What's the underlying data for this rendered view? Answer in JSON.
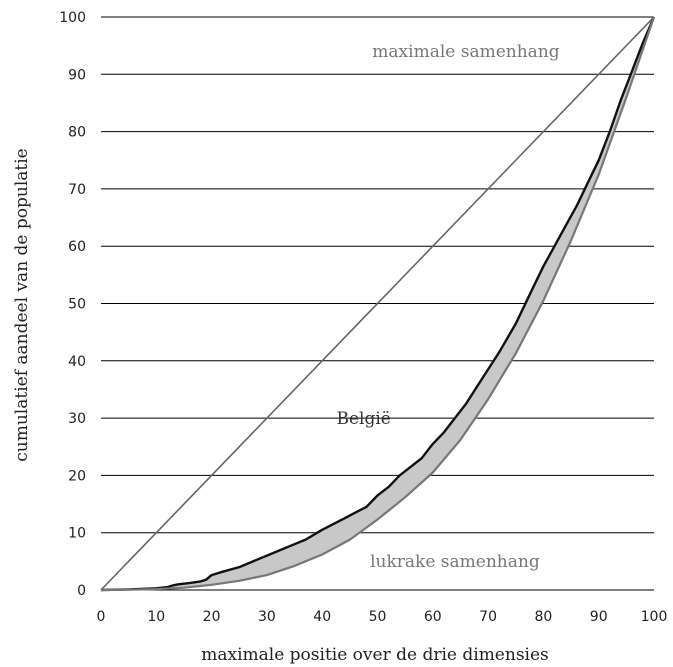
{
  "chart_data": {
    "type": "line",
    "xlabel": "maximale positie over de drie dimensies",
    "ylabel": "cumulatief aandeel van de populatie",
    "xlim": [
      0,
      100
    ],
    "ylim": [
      0,
      100
    ],
    "x_ticks": [
      0,
      10,
      20,
      30,
      40,
      50,
      60,
      70,
      80,
      90,
      100
    ],
    "y_ticks": [
      0,
      10,
      20,
      30,
      40,
      50,
      60,
      70,
      80,
      90,
      100
    ],
    "grid": "horizontal",
    "annotations": [
      {
        "text": "maximale samenhang",
        "x": 66,
        "y": 93,
        "style": "grey"
      },
      {
        "text": "België",
        "x": 47.5,
        "y": 29,
        "style": "dark"
      },
      {
        "text": "lukrake samenhang",
        "x": 64,
        "y": 4,
        "style": "grey"
      }
    ],
    "series": [
      {
        "label": "maximale samenhang",
        "color": "#666666",
        "x": [
          0,
          100
        ],
        "y": [
          0,
          100
        ]
      },
      {
        "label": "België",
        "color": "#111111",
        "x": [
          0,
          5,
          10,
          12,
          13,
          14,
          16,
          18,
          19,
          20,
          22,
          25,
          28,
          30,
          32,
          35,
          37,
          40,
          42,
          44,
          46,
          48,
          50,
          52,
          54,
          56,
          58,
          60,
          62,
          64,
          66,
          68,
          70,
          72,
          75,
          78,
          80,
          82,
          84,
          86,
          88,
          90,
          92,
          94,
          96,
          98,
          100
        ],
        "y": [
          0,
          0.1,
          0.3,
          0.5,
          0.8,
          1.0,
          1.2,
          1.5,
          1.8,
          2.6,
          3.2,
          4.0,
          5.2,
          6.0,
          6.8,
          8.0,
          8.8,
          10.5,
          11.5,
          12.5,
          13.5,
          14.5,
          16.5,
          18,
          20,
          21.5,
          23,
          25.5,
          27.5,
          30,
          32.5,
          35.5,
          38.5,
          41.5,
          46.5,
          52.5,
          56.5,
          60,
          63.5,
          67,
          71,
          75,
          80,
          85.5,
          90.5,
          95.5,
          100
        ]
      },
      {
        "label": "lukrake samenhang",
        "color": "#777777",
        "x": [
          0,
          5,
          10,
          15,
          20,
          25,
          30,
          35,
          40,
          45,
          50,
          55,
          60,
          65,
          70,
          75,
          80,
          85,
          90,
          95,
          100
        ],
        "y": [
          0,
          0.05,
          0.15,
          0.4,
          0.9,
          1.6,
          2.6,
          4.2,
          6.2,
          8.8,
          12.3,
          16.2,
          20.5,
          26.2,
          33.3,
          41.3,
          50.5,
          61,
          72.5,
          86,
          100
        ]
      }
    ],
    "shaded_region": {
      "between": [
        "België",
        "lukrake samenhang"
      ],
      "color": "#c8c8c8"
    }
  }
}
